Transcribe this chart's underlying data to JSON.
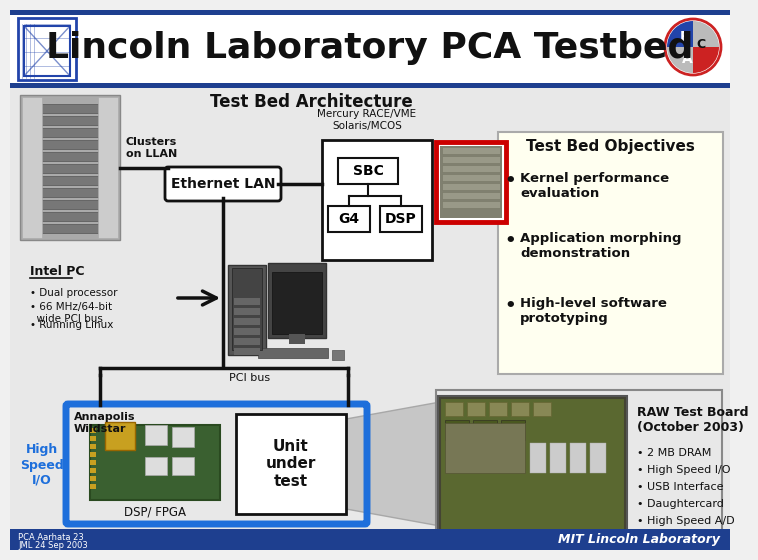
{
  "title": "Lincoln Laboratory PCA Testbed",
  "title_fontsize": 26,
  "bg_color": "#f0f0f0",
  "blue_bar_color": "#1e3f8f",
  "section_title": "Test Bed Architecture",
  "clusters_label": "Clusters\non LLAN",
  "ethernet_label": "Ethernet LAN",
  "mercury_label": "Mercury RACE/VME\nSolaris/MCOS",
  "sbc_label": "SBC",
  "g4_label": "G4",
  "dsp_label": "DSP",
  "pci_label": "PCI bus",
  "intel_pc_label": "Intel PC",
  "intel_pc_bullets": [
    "• Dual processor",
    "• 66 MHz/64-bit\n  wide PCI bus",
    "• Running Linux"
  ],
  "objectives_title": "Test Bed Objectives",
  "objectives_bg": "#fffff0",
  "objectives_border": "#aaaaaa",
  "objectives_bullets": [
    "Kernel performance\nevaluation",
    "Application morphing\ndemonstration",
    "High-level software\nprototyping"
  ],
  "annapolis_label": "Annapolis\nWildstar",
  "dsp_fpga_label": "DSP/ FPGA",
  "unit_under_test_label": "Unit\nunder\ntest",
  "raw_board_title": "RAW Test Board\n(October 2003)",
  "raw_board_bullets": [
    "• 2 MB DRAM",
    "• High Speed I/O",
    "• USB Interface",
    "• Daughtercard",
    "• High Speed A/D"
  ],
  "high_speed_label": "High\nSpeed\nI/O",
  "high_speed_color": "#1e6fdb",
  "footer_line1": "PCA Aarhata 23",
  "footer_line2": "JML 24 Sep 2003",
  "footer_right": "MIT Lincoln Laboratory",
  "footer_bar_color": "#1e3f8f",
  "box_color": "#111111",
  "red_border_color": "#cc0000",
  "blue_pipe_color": "#1e6fdb",
  "eth_box_color": "#ffffff",
  "arrow_dark": "#222222"
}
